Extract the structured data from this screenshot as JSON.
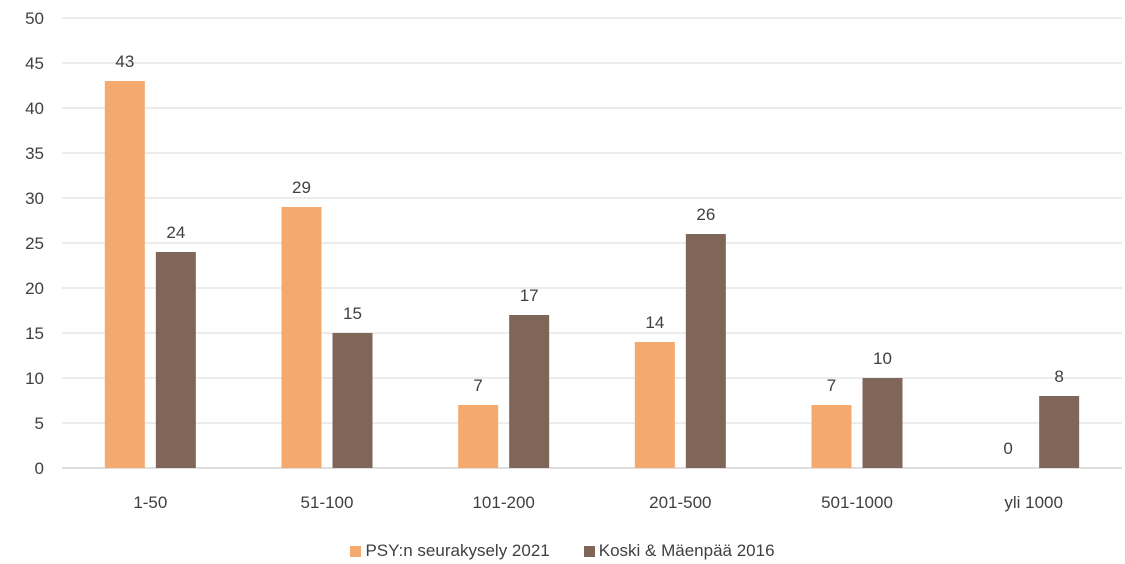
{
  "chart_data": {
    "type": "bar",
    "categories": [
      "1-50",
      "51-100",
      "101-200",
      "201-500",
      "501-1000",
      "yli 1000"
    ],
    "series": [
      {
        "name": "PSY:n seurakysely 2021",
        "values": [
          43,
          29,
          7,
          14,
          7,
          0
        ],
        "color": "#f4a96e"
      },
      {
        "name": "Koski & Mäenpää 2016",
        "values": [
          24,
          15,
          17,
          26,
          10,
          8
        ],
        "color": "#7f6659"
      }
    ],
    "ylim": [
      0,
      50
    ],
    "yticks": [
      0,
      5,
      10,
      15,
      20,
      25,
      30,
      35,
      40,
      45,
      50
    ],
    "grid": true,
    "legend_position": "bottom",
    "data_labels": true
  }
}
